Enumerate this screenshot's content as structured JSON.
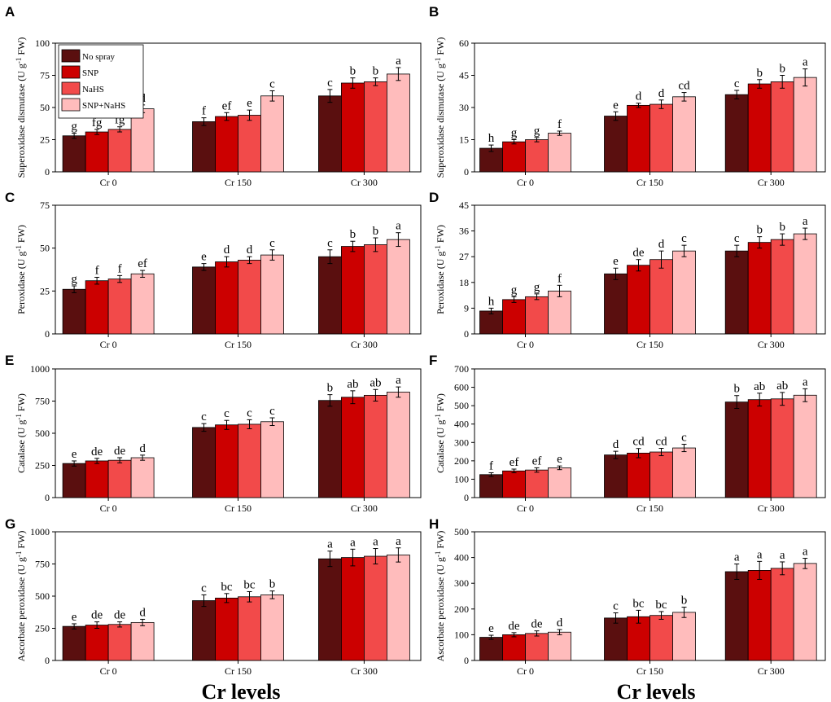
{
  "figure": {
    "xlabel_left": "Cr levels",
    "xlabel_right": "Cr levels"
  },
  "chart_data": [
    {
      "panel": "A",
      "type": "bar",
      "ylabel": "Superoxidase dismutase (U g-1 FW)",
      "ylabel_parts": [
        "Superoxidase dismutase (U g",
        "-1",
        " FW)"
      ],
      "ylim": [
        0,
        100
      ],
      "yticks": [
        0,
        25,
        50,
        75,
        100
      ],
      "categories": [
        "Cr 0",
        "Cr 150",
        "Cr 300"
      ],
      "legend": {
        "show": true,
        "placement": "top-left"
      },
      "series": [
        {
          "name": "No spray",
          "values": [
            28,
            39,
            59
          ],
          "errors": [
            2,
            3,
            5
          ],
          "letters": [
            "g",
            "f",
            "c"
          ]
        },
        {
          "name": "SNP",
          "values": [
            31,
            43,
            69
          ],
          "errors": [
            2,
            3,
            4
          ],
          "letters": [
            "fg",
            "ef",
            "b"
          ]
        },
        {
          "name": "NaHS",
          "values": [
            33,
            44,
            70
          ],
          "errors": [
            2,
            4,
            3
          ],
          "letters": [
            "fg",
            "e",
            "b"
          ]
        },
        {
          "name": "SNP+NaHS",
          "values": [
            49,
            59,
            76
          ],
          "errors": [
            3,
            4,
            5
          ],
          "letters": [
            "d",
            "c",
            "a"
          ]
        }
      ]
    },
    {
      "panel": "B",
      "type": "bar",
      "ylabel": "Superoxidase dismutase (U g-1 FW)",
      "ylabel_parts": [
        "Superoxidase dismutase (U g",
        "-1",
        " FW)"
      ],
      "ylim": [
        0,
        60
      ],
      "yticks": [
        0,
        15,
        30,
        45,
        60
      ],
      "categories": [
        "Cr 0",
        "Cr 150",
        "Cr 300"
      ],
      "legend": {
        "show": false
      },
      "series": [
        {
          "name": "No spray",
          "values": [
            11,
            26,
            36
          ],
          "errors": [
            1.5,
            2,
            2
          ],
          "letters": [
            "h",
            "e",
            "c"
          ]
        },
        {
          "name": "SNP",
          "values": [
            14,
            31,
            41
          ],
          "errors": [
            1,
            1,
            2
          ],
          "letters": [
            "g",
            "d",
            "b"
          ]
        },
        {
          "name": "NaHS",
          "values": [
            15,
            31.5,
            42
          ],
          "errors": [
            1,
            2,
            3
          ],
          "letters": [
            "g",
            "d",
            "b"
          ]
        },
        {
          "name": "SNP+NaHS",
          "values": [
            18,
            35,
            44
          ],
          "errors": [
            1,
            2,
            4
          ],
          "letters": [
            "f",
            "cd",
            "a"
          ]
        }
      ]
    },
    {
      "panel": "C",
      "type": "bar",
      "ylabel": "Peroxidase (U g-1 FW)",
      "ylabel_parts": [
        "Peroxidase (U g",
        "-1",
        " FW)"
      ],
      "ylim": [
        0,
        75
      ],
      "yticks": [
        0,
        25,
        50,
        75
      ],
      "categories": [
        "Cr 0",
        "Cr 150",
        "Cr 300"
      ],
      "legend": {
        "show": false
      },
      "series": [
        {
          "name": "No spray",
          "values": [
            26,
            39,
            45
          ],
          "errors": [
            2,
            2,
            4
          ],
          "letters": [
            "g",
            "e",
            "c"
          ]
        },
        {
          "name": "SNP",
          "values": [
            31,
            42,
            51
          ],
          "errors": [
            2,
            3,
            3
          ],
          "letters": [
            "f",
            "d",
            "b"
          ]
        },
        {
          "name": "NaHS",
          "values": [
            32,
            43,
            52
          ],
          "errors": [
            2,
            2,
            4
          ],
          "letters": [
            "f",
            "d",
            "b"
          ]
        },
        {
          "name": "SNP+NaHS",
          "values": [
            35,
            46,
            55
          ],
          "errors": [
            2,
            3,
            4
          ],
          "letters": [
            "ef",
            "c",
            "a"
          ]
        }
      ]
    },
    {
      "panel": "D",
      "type": "bar",
      "ylabel": "Peroxidase (U g-1 FW)",
      "ylabel_parts": [
        "Peroxidase (U g",
        "-1",
        " FW)"
      ],
      "ylim": [
        0,
        45
      ],
      "yticks": [
        0,
        9,
        18,
        27,
        36,
        45
      ],
      "categories": [
        "Cr 0",
        "Cr 150",
        "Cr 300"
      ],
      "legend": {
        "show": false
      },
      "series": [
        {
          "name": "No spray",
          "values": [
            8,
            21,
            29
          ],
          "errors": [
            1,
            2,
            2
          ],
          "letters": [
            "h",
            "e",
            "c"
          ]
        },
        {
          "name": "SNP",
          "values": [
            12,
            24,
            32
          ],
          "errors": [
            1,
            2,
            2
          ],
          "letters": [
            "g",
            "de",
            "b"
          ]
        },
        {
          "name": "NaHS",
          "values": [
            13,
            26,
            33
          ],
          "errors": [
            1,
            3,
            2
          ],
          "letters": [
            "g",
            "d",
            "b"
          ]
        },
        {
          "name": "SNP+NaHS",
          "values": [
            15,
            29,
            35
          ],
          "errors": [
            2,
            2,
            2
          ],
          "letters": [
            "f",
            "c",
            "a"
          ]
        }
      ]
    },
    {
      "panel": "E",
      "type": "bar",
      "ylabel": "Catalase (U g-1 FW)",
      "ylabel_parts": [
        "Catalase (U g",
        "-1",
        " FW)"
      ],
      "ylim": [
        0,
        1000
      ],
      "yticks": [
        0,
        250,
        500,
        750,
        1000
      ],
      "categories": [
        "Cr 0",
        "Cr 150",
        "Cr 300"
      ],
      "legend": {
        "show": false
      },
      "series": [
        {
          "name": "No spray",
          "values": [
            265,
            545,
            755
          ],
          "errors": [
            20,
            30,
            45
          ],
          "letters": [
            "e",
            "c",
            "b"
          ]
        },
        {
          "name": "SNP",
          "values": [
            285,
            565,
            780
          ],
          "errors": [
            20,
            35,
            50
          ],
          "letters": [
            "de",
            "c",
            "ab"
          ]
        },
        {
          "name": "NaHS",
          "values": [
            290,
            570,
            795
          ],
          "errors": [
            20,
            35,
            45
          ],
          "letters": [
            "de",
            "c",
            "ab"
          ]
        },
        {
          "name": "SNP+NaHS",
          "values": [
            310,
            590,
            820
          ],
          "errors": [
            20,
            30,
            40
          ],
          "letters": [
            "d",
            "c",
            "a"
          ]
        }
      ]
    },
    {
      "panel": "F",
      "type": "bar",
      "ylabel": "Catalase (U g-1 FW)",
      "ylabel_parts": [
        "Catalase (U g",
        "-1",
        " FW)"
      ],
      "ylim": [
        0,
        700
      ],
      "yticks": [
        0,
        100,
        200,
        300,
        400,
        500,
        600,
        700
      ],
      "categories": [
        "Cr 0",
        "Cr 150",
        "Cr 300"
      ],
      "legend": {
        "show": false
      },
      "series": [
        {
          "name": "No spray",
          "values": [
            125,
            232,
            520
          ],
          "errors": [
            10,
            20,
            35
          ],
          "letters": [
            "f",
            "d",
            "b"
          ]
        },
        {
          "name": "SNP",
          "values": [
            145,
            242,
            533
          ],
          "errors": [
            10,
            25,
            35
          ],
          "letters": [
            "ef",
            "cd",
            "ab"
          ]
        },
        {
          "name": "NaHS",
          "values": [
            150,
            248,
            537
          ],
          "errors": [
            12,
            20,
            35
          ],
          "letters": [
            "ef",
            "cd",
            "ab"
          ]
        },
        {
          "name": "SNP+NaHS",
          "values": [
            162,
            270,
            557
          ],
          "errors": [
            10,
            20,
            35
          ],
          "letters": [
            "e",
            "c",
            "a"
          ]
        }
      ]
    },
    {
      "panel": "G",
      "type": "bar",
      "ylabel": "Ascorbate peroxidase (U g-1 FW)",
      "ylabel_parts": [
        "Ascorbate peroxidase (U g",
        "-1",
        " FW)"
      ],
      "ylim": [
        0,
        1000
      ],
      "yticks": [
        0,
        250,
        500,
        750,
        1000
      ],
      "categories": [
        "Cr 0",
        "Cr 150",
        "Cr 300"
      ],
      "legend": {
        "show": false
      },
      "series": [
        {
          "name": "No spray",
          "values": [
            265,
            465,
            790
          ],
          "errors": [
            20,
            45,
            60
          ],
          "letters": [
            "e",
            "c",
            "a"
          ]
        },
        {
          "name": "SNP",
          "values": [
            275,
            485,
            800
          ],
          "errors": [
            25,
            35,
            65
          ],
          "letters": [
            "de",
            "bc",
            "a"
          ]
        },
        {
          "name": "NaHS",
          "values": [
            280,
            495,
            810
          ],
          "errors": [
            20,
            40,
            60
          ],
          "letters": [
            "de",
            "bc",
            "a"
          ]
        },
        {
          "name": "SNP+NaHS",
          "values": [
            295,
            510,
            820
          ],
          "errors": [
            25,
            30,
            55
          ],
          "letters": [
            "d",
            "b",
            "a"
          ]
        }
      ]
    },
    {
      "panel": "H",
      "type": "bar",
      "ylabel": "Ascorbate peroxidase (U g-1 FW)",
      "ylabel_parts": [
        "Ascorbate peroxidase (U g",
        "-1",
        " FW)"
      ],
      "ylim": [
        0,
        500
      ],
      "yticks": [
        0,
        100,
        200,
        300,
        400,
        500
      ],
      "categories": [
        "Cr 0",
        "Cr 150",
        "Cr 300"
      ],
      "legend": {
        "show": false
      },
      "series": [
        {
          "name": "No spray",
          "values": [
            90,
            165,
            345
          ],
          "errors": [
            8,
            20,
            30
          ],
          "letters": [
            "e",
            "c",
            "a"
          ]
        },
        {
          "name": "SNP",
          "values": [
            100,
            170,
            350
          ],
          "errors": [
            8,
            25,
            35
          ],
          "letters": [
            "de",
            "bc",
            "a"
          ]
        },
        {
          "name": "NaHS",
          "values": [
            105,
            175,
            358
          ],
          "errors": [
            10,
            15,
            25
          ],
          "letters": [
            "de",
            "bc",
            "a"
          ]
        },
        {
          "name": "SNP+NaHS",
          "values": [
            110,
            187,
            377
          ],
          "errors": [
            10,
            20,
            20
          ],
          "letters": [
            "d",
            "b",
            "a"
          ]
        }
      ]
    }
  ],
  "colors": {
    "No spray": "#5a0f0f",
    "SNP": "#cc0000",
    "NaHS": "#f24a4a",
    "SNP+NaHS": "#ffbcbc"
  }
}
